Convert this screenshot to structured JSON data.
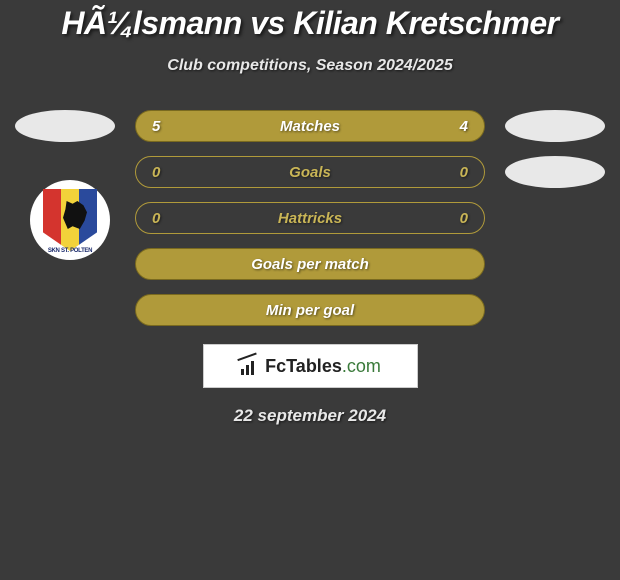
{
  "title": "HÃ¼lsmann vs Kilian Kretschmer",
  "subtitle": "Club competitions, Season 2024/2025",
  "rows": [
    {
      "label": "Matches",
      "left": "5",
      "right": "4",
      "bg": "#b09a3a",
      "border": "#7a6a1f",
      "text": "#ffffff",
      "leftOval": true,
      "rightOval": true
    },
    {
      "label": "Goals",
      "left": "0",
      "right": "0",
      "bg": "transparent",
      "border": "#b09a3a",
      "text": "#c9b556",
      "leftOval": false,
      "rightOval": true
    },
    {
      "label": "Hattricks",
      "left": "0",
      "right": "0",
      "bg": "transparent",
      "border": "#b09a3a",
      "text": "#c9b556",
      "leftOval": false,
      "rightOval": false
    },
    {
      "label": "Goals per match",
      "left": "",
      "right": "",
      "bg": "#b09a3a",
      "border": "#7a6a1f",
      "text": "#ffffff",
      "leftOval": false,
      "rightOval": false
    },
    {
      "label": "Min per goal",
      "left": "",
      "right": "",
      "bg": "#b09a3a",
      "border": "#7a6a1f",
      "text": "#ffffff",
      "leftOval": false,
      "rightOval": false
    }
  ],
  "brand": {
    "name": "FcTables",
    "domain": ".com"
  },
  "date": "22 september 2024",
  "badge_label": "SKN ST. POLTEN",
  "colors": {
    "background": "#3a3a3a",
    "pill_filled_bg": "#b09a3a",
    "pill_filled_border": "#7a6a1f",
    "pill_outline_border": "#b09a3a",
    "pill_outline_text": "#c9b556",
    "oval": "#e8e8e8",
    "title_text": "#ffffff"
  }
}
